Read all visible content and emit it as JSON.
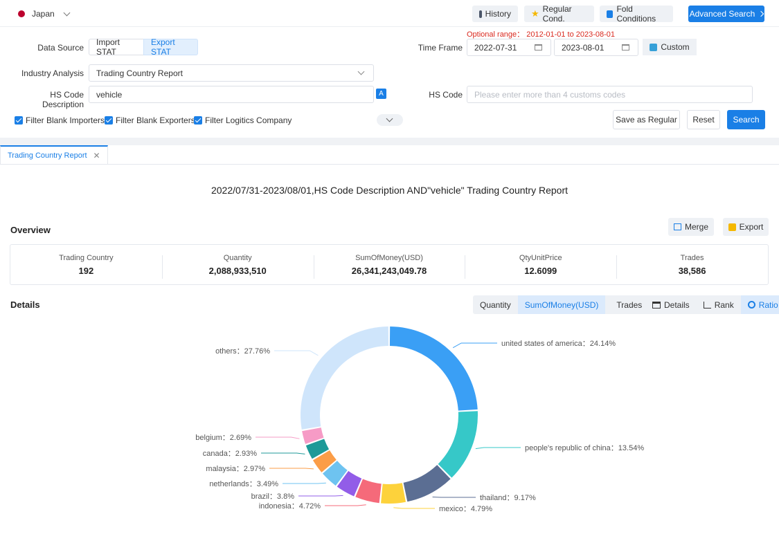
{
  "top": {
    "country": "Japan",
    "buttons": {
      "history": "History",
      "regular": "Regular Cond.",
      "fold": "Fold Conditions",
      "advanced": "Advanced Search"
    }
  },
  "filter": {
    "data_source_label": "Data Source",
    "import_label": "Import STAT",
    "export_label": "Export STAT",
    "time_frame_label": "Time Frame",
    "optional_range": "Optional range： 2012-01-01 to 2023-08-01",
    "date_from": "2022-07-31",
    "date_to": "2023-08-01",
    "custom_label": "Custom",
    "industry_label": "Industry Analysis",
    "industry_value": "Trading Country Report",
    "hs_desc_label": "HS Code Description",
    "hs_desc_value": "vehicle",
    "hs_code_label": "HS Code",
    "hs_code_placeholder": "Please enter more than 4 customs codes",
    "cb_importers": "Filter Blank Importers",
    "cb_exporters": "Filter Blank Exporters",
    "cb_logistics": "Filter Logitics Company",
    "save_regular": "Save as Regular",
    "reset": "Reset",
    "search": "Search"
  },
  "report": {
    "tab": "Trading Country Report",
    "title": "2022/07/31-2023/08/01,HS Code Description AND\"vehicle\" Trading Country Report",
    "overview": "Overview",
    "merge": "Merge",
    "export": "Export",
    "stats": [
      {
        "label": "Trading Country",
        "value": "192"
      },
      {
        "label": "Quantity",
        "value": "2,088,933,510"
      },
      {
        "label": "SumOfMoney(USD)",
        "value": "26,341,243,049.78"
      },
      {
        "label": "QtyUnitPrice",
        "value": "12.6099"
      },
      {
        "label": "Trades",
        "value": "38,586"
      }
    ],
    "details": "Details",
    "metric_tabs": [
      "Quantity",
      "SumOfMoney(USD)",
      "Trades"
    ],
    "view_tabs": [
      "Details",
      "Rank",
      "Ratio"
    ]
  },
  "chart_data": {
    "type": "pie",
    "donut": true,
    "slices": [
      {
        "label": "united states of america：24.14%",
        "value": 24.14,
        "color": "#3a9ff5"
      },
      {
        "label": "people's republic of china：13.54%",
        "value": 13.54,
        "color": "#36c8c8"
      },
      {
        "label": "thailand：9.17%",
        "value": 9.17,
        "color": "#5b6e93"
      },
      {
        "label": "mexico：4.79%",
        "value": 4.79,
        "color": "#fdd23b"
      },
      {
        "label": "indonesia：4.72%",
        "value": 4.72,
        "color": "#f56a7a"
      },
      {
        "label": "brazil：3.8%",
        "value": 3.8,
        "color": "#925de8"
      },
      {
        "label": "netherlands：3.49%",
        "value": 3.49,
        "color": "#6ec3f0"
      },
      {
        "label": "malaysia：2.97%",
        "value": 2.97,
        "color": "#fb9d47"
      },
      {
        "label": "canada：2.93%",
        "value": 2.93,
        "color": "#1d9a98"
      },
      {
        "label": "belgium：2.69%",
        "value": 2.69,
        "color": "#f69bc6"
      },
      {
        "label": "others：27.76%",
        "value": 27.76,
        "color": "#cfe5fb"
      }
    ]
  }
}
